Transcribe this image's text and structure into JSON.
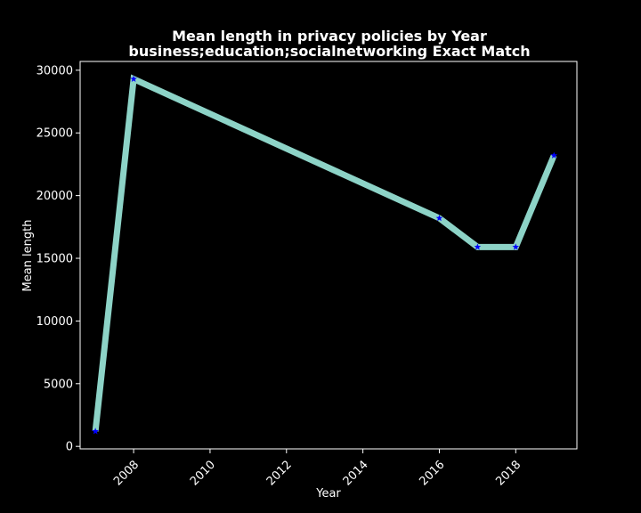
{
  "chart_data": {
    "type": "line",
    "title": "Mean length in privacy policies by Year",
    "subtitle": "business;education;socialnetworking Exact Match",
    "xlabel": "Year",
    "ylabel": "Mean length",
    "xlim": [
      2006.6,
      2019.6
    ],
    "ylim": [
      -200,
      30700
    ],
    "x_ticks": [
      2008,
      2010,
      2012,
      2014,
      2016,
      2018
    ],
    "y_ticks": [
      0,
      5000,
      10000,
      15000,
      20000,
      25000,
      30000
    ],
    "grid": false,
    "colors": {
      "background": "#000000",
      "line": "#8dd3c7",
      "marker": "#0000ff",
      "text": "#ffffff"
    },
    "series": [
      {
        "x": [
          2007,
          2008,
          2016,
          2017,
          2018,
          2019
        ],
        "values": [
          1200,
          29300,
          18200,
          15900,
          15900,
          23200
        ]
      }
    ]
  }
}
